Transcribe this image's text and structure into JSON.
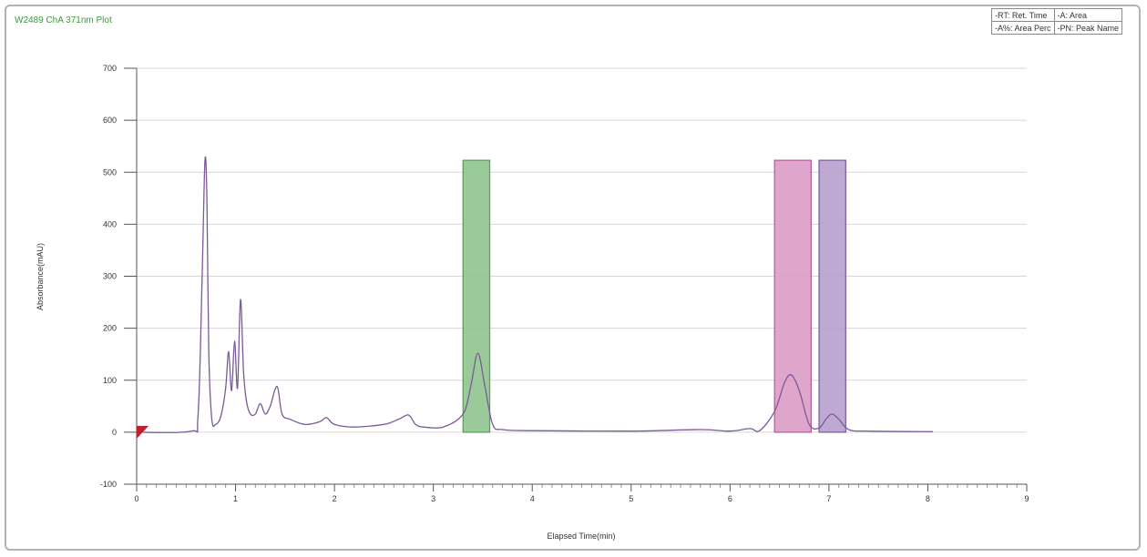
{
  "plot_label": "W2489 ChA 371nm Plot",
  "legend": {
    "cells": [
      [
        "-RT: Ret. Time",
        "-A: Area"
      ],
      [
        "-A%: Area Perc",
        "-PN: Peak Name"
      ]
    ]
  },
  "chart_data": {
    "type": "line",
    "title": "W2489 ChA 371nm Plot",
    "xlabel": "Elapsed Time(min)",
    "ylabel": "Absorbance(mAU)",
    "xlim": [
      0,
      9
    ],
    "ylim": [
      -100,
      700
    ],
    "x_ticks": [
      0,
      1,
      2,
      3,
      4,
      5,
      6,
      7,
      8,
      9
    ],
    "y_ticks": [
      -100,
      0,
      100,
      200,
      300,
      400,
      500,
      600,
      700
    ],
    "grid": "horizontal",
    "series": [
      {
        "color": "#7a5a9a",
        "x": [
          0,
          0.55,
          0.62,
          0.66,
          0.69,
          0.71,
          0.73,
          0.76,
          0.8,
          0.85,
          0.9,
          0.93,
          0.96,
          0.99,
          1.02,
          1.05,
          1.08,
          1.11,
          1.15,
          1.2,
          1.25,
          1.3,
          1.35,
          1.42,
          1.47,
          1.55,
          1.7,
          1.85,
          1.92,
          2.0,
          2.2,
          2.5,
          2.65,
          2.75,
          2.82,
          2.9,
          3.1,
          3.3,
          3.38,
          3.45,
          3.52,
          3.6,
          3.7,
          4.0,
          5.0,
          5.7,
          6.0,
          6.2,
          6.3,
          6.45,
          6.55,
          6.62,
          6.7,
          6.8,
          6.9,
          6.97,
          7.03,
          7.1,
          7.2,
          7.4,
          8.05
        ],
        "y": [
          0,
          2,
          30,
          280,
          520,
          450,
          150,
          25,
          15,
          30,
          85,
          155,
          80,
          175,
          85,
          255,
          120,
          60,
          35,
          35,
          55,
          35,
          50,
          88,
          35,
          25,
          15,
          20,
          28,
          15,
          10,
          15,
          25,
          33,
          15,
          10,
          10,
          35,
          90,
          152,
          90,
          15,
          5,
          3,
          2,
          5,
          2,
          7,
          3,
          40,
          95,
          110,
          80,
          15,
          8,
          25,
          35,
          25,
          5,
          2,
          1
        ]
      }
    ],
    "peak_bands": [
      {
        "x_start": 3.3,
        "x_end": 3.57,
        "y_top": 523,
        "color": "#8fc48f",
        "stroke": "#5a9a5a"
      },
      {
        "x_start": 6.45,
        "x_end": 6.82,
        "y_top": 523,
        "color": "#dc9cc6",
        "stroke": "#b05a96"
      },
      {
        "x_start": 6.9,
        "x_end": 7.17,
        "y_top": 523,
        "color": "#b6a0cc",
        "stroke": "#7a5a9a"
      }
    ]
  }
}
